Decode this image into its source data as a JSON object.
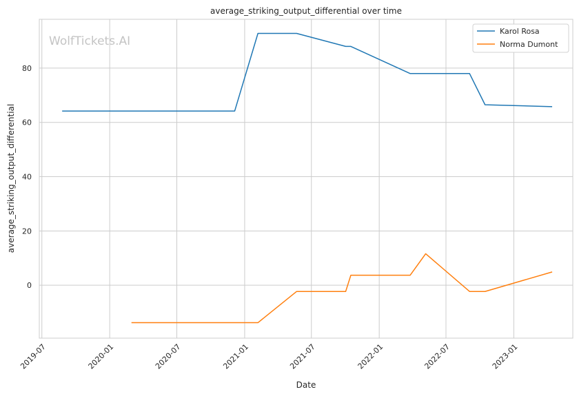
{
  "watermark": "WolfTickets.AI",
  "chart_data": {
    "type": "line",
    "title": "average_striking_output_differential over time",
    "xlabel": "Date",
    "ylabel": "average_striking_output_differential",
    "xlim": [
      "2019-06-24",
      "2023-06-10"
    ],
    "ylim": [
      -19.5,
      98
    ],
    "x_ticks": [
      "2019-07",
      "2020-01",
      "2020-07",
      "2021-01",
      "2021-07",
      "2022-01",
      "2022-07",
      "2023-01"
    ],
    "y_ticks": [
      0,
      20,
      40,
      60,
      80
    ],
    "grid": true,
    "legend_position": "top-right",
    "series": [
      {
        "name": "Karol Rosa",
        "color": "#1f77b4",
        "points": [
          [
            "2019-08-25",
            64.2
          ],
          [
            "2020-12-05",
            64.2
          ],
          [
            "2021-02-06",
            92.8
          ],
          [
            "2021-05-22",
            92.8
          ],
          [
            "2021-10-02",
            88.0
          ],
          [
            "2021-10-16",
            88.0
          ],
          [
            "2022-03-26",
            78.0
          ],
          [
            "2022-09-03",
            78.0
          ],
          [
            "2022-10-15",
            66.5
          ],
          [
            "2023-04-15",
            65.8
          ]
        ]
      },
      {
        "name": "Norma Dumont",
        "color": "#ff7f0e",
        "points": [
          [
            "2020-02-29",
            -13.8
          ],
          [
            "2021-02-06",
            -13.8
          ],
          [
            "2021-05-22",
            -2.3
          ],
          [
            "2021-10-02",
            -2.3
          ],
          [
            "2021-10-16",
            3.7
          ],
          [
            "2022-03-26",
            3.7
          ],
          [
            "2022-05-07",
            11.6
          ],
          [
            "2022-09-03",
            -2.3
          ],
          [
            "2022-10-15",
            -2.3
          ],
          [
            "2023-04-15",
            4.9
          ]
        ]
      }
    ]
  }
}
